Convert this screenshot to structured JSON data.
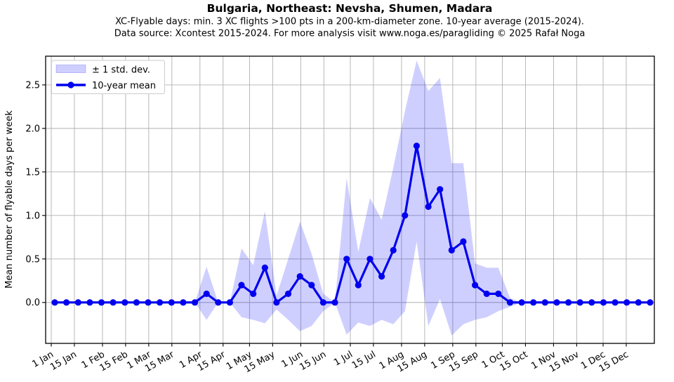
{
  "header": {
    "title": "Bulgaria, Northeast: Nevsha, Shumen, Madara",
    "subtitle1": "XC-Flyable days: min. 3 XC flights >100 pts in a 200-km-diameter zone. 10-year average (2015-2024).",
    "subtitle2": "Data source: Xcontest 2015-2024. For more analysis visit www.noga.es/paragliding © 2025 Rafał Noga"
  },
  "chart_data": {
    "type": "line",
    "title": "Bulgaria, Northeast: Nevsha, Shumen, Madara",
    "ylabel": "Mean number of flyable days per week",
    "xlabel": "",
    "ylim": [
      -0.47,
      2.83
    ],
    "grid": true,
    "legend_position": "upper left",
    "yticks": [
      {
        "label": "0.0",
        "value": 0.0
      },
      {
        "label": "0.5",
        "value": 0.5
      },
      {
        "label": "1.0",
        "value": 1.0
      },
      {
        "label": "1.5",
        "value": 1.5
      },
      {
        "label": "2.0",
        "value": 2.0
      },
      {
        "label": "2.5",
        "value": 2.5
      }
    ],
    "xticks": [
      {
        "label": "1 Jan",
        "day": 1
      },
      {
        "label": "15 Jan",
        "day": 15
      },
      {
        "label": "1 Feb",
        "day": 32
      },
      {
        "label": "15 Feb",
        "day": 46
      },
      {
        "label": "1 Mar",
        "day": 60
      },
      {
        "label": "15 Mar",
        "day": 74
      },
      {
        "label": "1 Apr",
        "day": 91
      },
      {
        "label": "15 Apr",
        "day": 105
      },
      {
        "label": "1 May",
        "day": 121
      },
      {
        "label": "15 May",
        "day": 135
      },
      {
        "label": "1 Jun",
        "day": 152
      },
      {
        "label": "15 Jun",
        "day": 166
      },
      {
        "label": "1 Jul",
        "day": 182
      },
      {
        "label": "15 Jul",
        "day": 196
      },
      {
        "label": "1 Aug",
        "day": 213
      },
      {
        "label": "15 Aug",
        "day": 227
      },
      {
        "label": "1 Sep",
        "day": 244
      },
      {
        "label": "15 Sep",
        "day": 258
      },
      {
        "label": "1 Oct",
        "day": 274
      },
      {
        "label": "15 Oct",
        "day": 288
      },
      {
        "label": "1 Nov",
        "day": 305
      },
      {
        "label": "15 Nov",
        "day": 319
      },
      {
        "label": "1 Dec",
        "day": 335
      },
      {
        "label": "15 Dec",
        "day": 349
      }
    ],
    "x_unit": "weekly points, 52 weeks",
    "series": [
      {
        "name": "± 1 std. dev.",
        "type": "band",
        "color": "rgba(0,0,255,0.19)",
        "upper": [
          0,
          0,
          0,
          0,
          0,
          0,
          0,
          0,
          0,
          0,
          0,
          0,
          0,
          0.41,
          0,
          0,
          0.62,
          0.43,
          1.05,
          0.08,
          0.5,
          0.93,
          0.56,
          0.1,
          0,
          1.43,
          0.58,
          1.2,
          0.95,
          1.55,
          2.2,
          2.78,
          2.43,
          2.58,
          1.6,
          1.6,
          0.45,
          0.4,
          0.4,
          0.05,
          0,
          0,
          0,
          0,
          0,
          0,
          0,
          0,
          0,
          0,
          0,
          0
        ],
        "lower": [
          0,
          0,
          0,
          0,
          0,
          0,
          0,
          0,
          0,
          0,
          0,
          0,
          0,
          -0.2,
          0,
          0,
          -0.17,
          -0.2,
          -0.24,
          -0.08,
          -0.2,
          -0.33,
          -0.27,
          -0.1,
          0,
          -0.37,
          -0.23,
          -0.27,
          -0.2,
          -0.25,
          -0.1,
          0.7,
          -0.27,
          0.04,
          -0.38,
          -0.25,
          -0.2,
          -0.17,
          -0.1,
          -0.05,
          0,
          0,
          0,
          0,
          0,
          0,
          0,
          0,
          0,
          0,
          0,
          0
        ]
      },
      {
        "name": "10-year mean",
        "type": "line",
        "color": "#0000ee",
        "marker": "circle",
        "values": [
          0,
          0,
          0,
          0,
          0,
          0,
          0,
          0,
          0,
          0,
          0,
          0,
          0,
          0.1,
          0,
          0,
          0.2,
          0.1,
          0.4,
          0,
          0.1,
          0.3,
          0.2,
          0,
          0,
          0.5,
          0.2,
          0.5,
          0.3,
          0.6,
          1.0,
          1.8,
          1.1,
          1.3,
          0.6,
          0.7,
          0.2,
          0.1,
          0.1,
          0,
          0,
          0,
          0,
          0,
          0,
          0,
          0,
          0,
          0,
          0,
          0,
          0
        ]
      }
    ],
    "colors": {
      "grid": "#b0b0b0",
      "spine": "#000000",
      "background": "#ffffff",
      "legend_border": "#cccccc"
    }
  }
}
